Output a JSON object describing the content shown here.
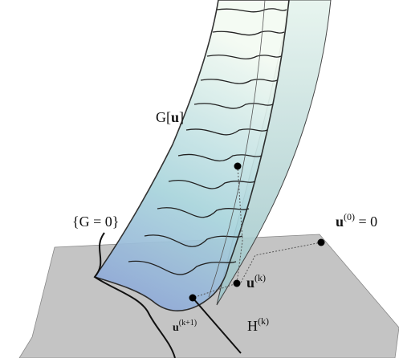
{
  "labels": {
    "surface": {
      "pre": "G[",
      "bold": "u",
      "post": "]"
    },
    "zero_set": "{G = 0}",
    "initial": {
      "base": "u",
      "sup": "(0)",
      "rest": " = 0"
    },
    "current": {
      "base": "u",
      "sup": "(k)"
    },
    "next": {
      "base": "u",
      "sup": "(k+1)"
    },
    "hyperplane": {
      "base": "H",
      "sup": "(k)"
    }
  }
}
